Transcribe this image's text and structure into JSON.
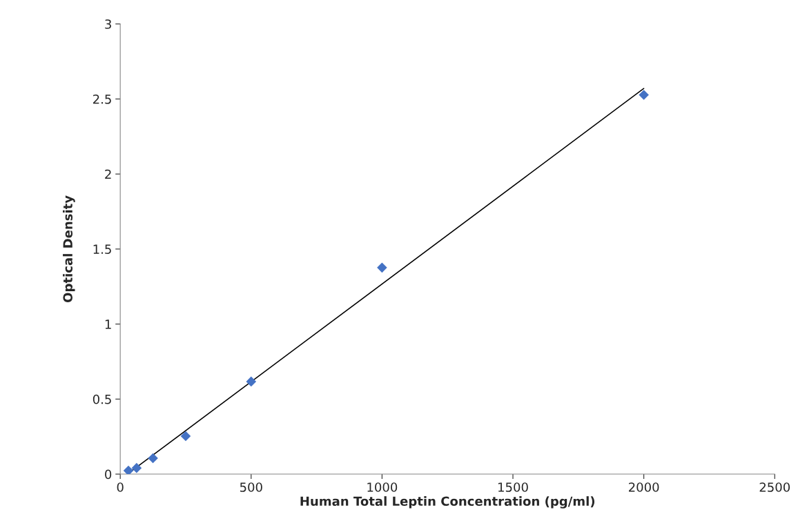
{
  "chart_data": {
    "type": "scatter",
    "xlabel": "Human Total Leptin Concentration (pg/ml)",
    "ylabel": "Optical Density",
    "xlim": [
      0,
      2500
    ],
    "xticks": [
      0,
      500,
      1000,
      1500,
      2000,
      2500
    ],
    "ylim": [
      0,
      3
    ],
    "yticks": [
      0,
      0.5,
      1,
      1.5,
      2,
      2.5,
      3
    ],
    "grid": false,
    "legend": false,
    "series": [
      {
        "marker": "diamond",
        "color": "#4472c4",
        "x": [
          31.25,
          62.5,
          125,
          250,
          500,
          1000,
          2000
        ],
        "values": [
          0.023,
          0.041,
          0.106,
          0.253,
          0.617,
          1.376,
          2.527
        ]
      },
      {
        "type": "line",
        "color": "#000000",
        "x": [
          31.25,
          2000
        ],
        "values": [
          0.005,
          2.57
        ]
      }
    ]
  }
}
